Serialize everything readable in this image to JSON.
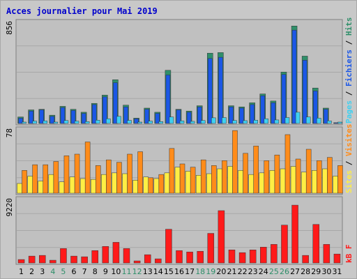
{
  "colors": {
    "frame_bg": "#c8c8c8",
    "panel_bg": "#c0c0c0",
    "title": "#0000cc",
    "hits": "#2f8f6a",
    "files": "#1b57e6",
    "pages": "#40d0f0",
    "visits": "#ff8c1a",
    "sites": "#ffee44",
    "kb": "#ff1a1a",
    "weekend_label": "#2f8f6a",
    "weekday_label": "#000000"
  },
  "chart_data": {
    "type": "bar",
    "title": "Acces journalier pour Mai 2019",
    "categories": [
      "1",
      "2",
      "3",
      "4",
      "5",
      "6",
      "7",
      "8",
      "9",
      "10",
      "11",
      "12",
      "13",
      "14",
      "15",
      "16",
      "17",
      "18",
      "19",
      "20",
      "21",
      "22",
      "23",
      "24",
      "25",
      "26",
      "27",
      "28",
      "29",
      "30",
      "31"
    ],
    "weekend_days": [
      "4",
      "5",
      "11",
      "12",
      "18",
      "19",
      "25",
      "26"
    ],
    "panels": [
      {
        "max_label": "856",
        "side_labels": [
          "Pages",
          "Fichiers",
          "Hits"
        ],
        "ylim": [
          0,
          856
        ],
        "series": [
          {
            "name": "Hits",
            "values": [
              55,
              115,
              120,
              70,
              145,
              120,
              95,
              170,
              240,
              370,
              155,
              45,
              130,
              95,
              450,
              120,
              105,
              150,
              595,
              600,
              150,
              140,
              175,
              250,
              190,
              435,
              825,
              570,
              300,
              130,
              5
            ]
          },
          {
            "name": "Fichiers",
            "values": [
              45,
              105,
              115,
              60,
              135,
              110,
              85,
              160,
              225,
              345,
              140,
              40,
              120,
              85,
              410,
              115,
              95,
              140,
              550,
              560,
              140,
              130,
              160,
              235,
              175,
              415,
              790,
              535,
              275,
              120,
              4
            ]
          },
          {
            "name": "Pages",
            "values": [
              12,
              20,
              22,
              12,
              25,
              20,
              16,
              28,
              40,
              60,
              26,
              8,
              20,
              16,
              55,
              22,
              18,
              25,
              48,
              50,
              25,
              24,
              28,
              40,
              30,
              50,
              95,
              55,
              45,
              22,
              1
            ]
          }
        ]
      },
      {
        "max_label": "78",
        "side_labels": [
          "Sites",
          "Visites"
        ],
        "ylim": [
          0,
          78
        ],
        "series": [
          {
            "name": "Visites",
            "values": [
              28,
              35,
              35,
              39,
              46,
              48,
              63,
              34,
              41,
              38,
              48,
              51,
              19,
              23,
              55,
              36,
              32,
              41,
              34,
              40,
              77,
              49,
              58,
              40,
              47,
              72,
              42,
              54,
              40,
              44,
              34
            ]
          },
          {
            "name": "Sites",
            "values": [
              12,
              21,
              15,
              23,
              14,
              20,
              18,
              17,
              23,
              25,
              24,
              16,
              20,
              18,
              25,
              32,
              27,
              22,
              24,
              30,
              33,
              28,
              23,
              25,
              28,
              30,
              33,
              26,
              28,
              30,
              21
            ]
          }
        ]
      },
      {
        "max_label": "9220",
        "side_labels": [
          "kB F"
        ],
        "ylim": [
          0,
          9220
        ],
        "series": [
          {
            "name": "kB F",
            "values": [
              500,
              1000,
              1100,
              400,
              2100,
              1000,
              900,
              1800,
              2400,
              3000,
              2100,
              300,
              1200,
              600,
              4900,
              1800,
              1600,
              1700,
              4300,
              7600,
              1900,
              1500,
              1900,
              2300,
              2700,
              5500,
              8400,
              1100,
              5600,
              2700,
              1300
            ]
          }
        ]
      }
    ]
  }
}
